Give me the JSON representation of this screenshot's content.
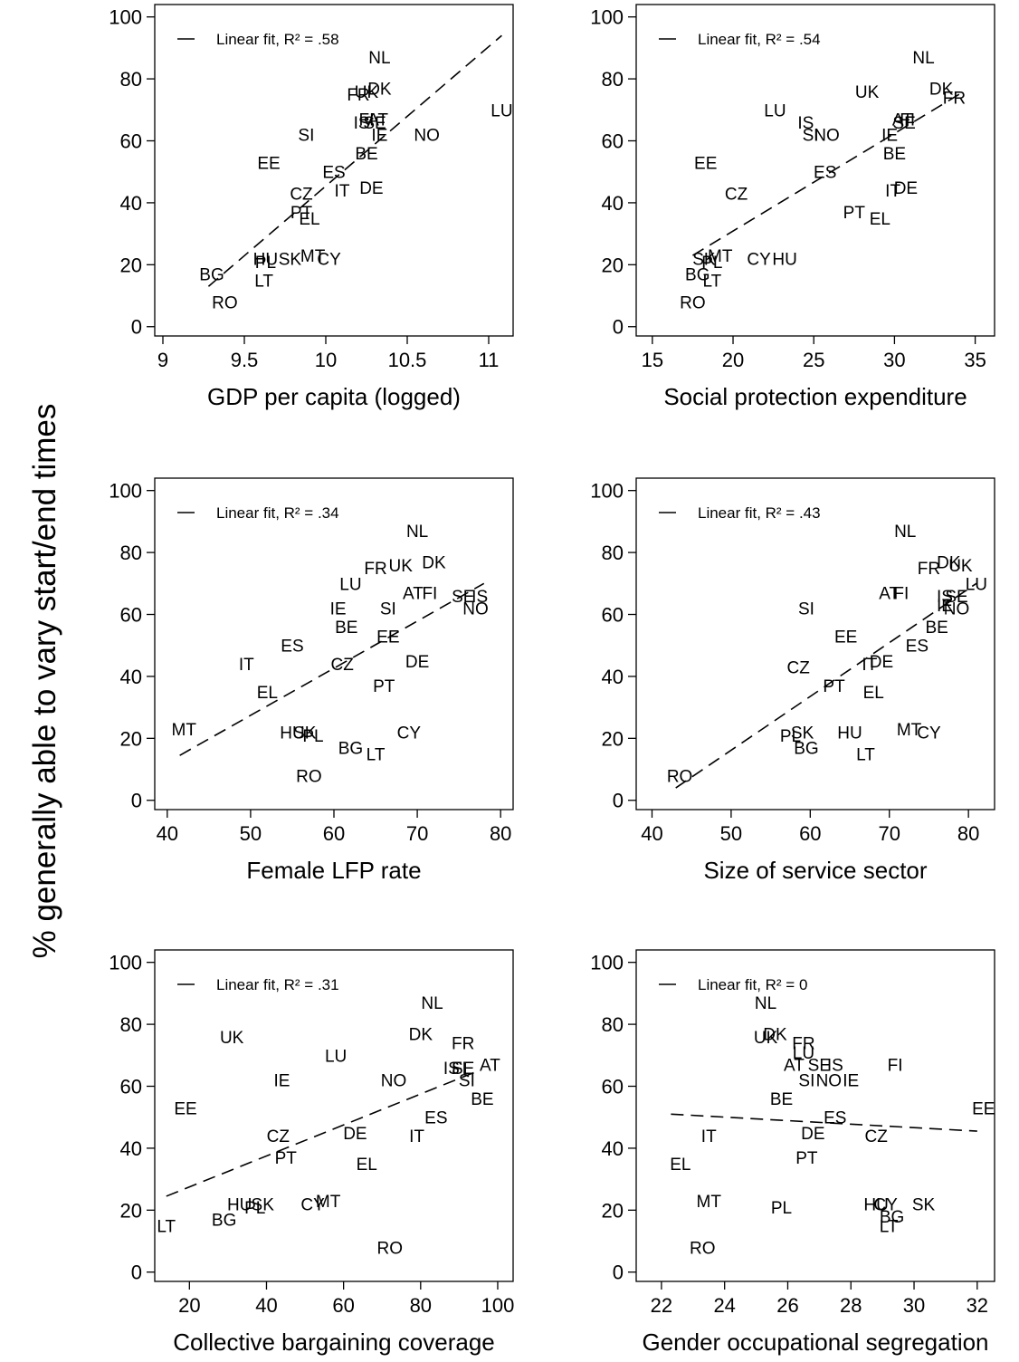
{
  "figure": {
    "shared_ylabel": "% generally able to vary start/end times"
  },
  "chart_data": [
    {
      "type": "scatter",
      "xlabel": "GDP per capita (logged)",
      "ylabel": "% generally able to vary start/end times",
      "xlim": [
        8.95,
        11.15
      ],
      "ylim": [
        -3,
        104
      ],
      "xticks": [
        9,
        9.5,
        10,
        10.5,
        11
      ],
      "yticks": [
        0,
        20,
        40,
        60,
        80,
        100
      ],
      "legend": "Linear fit, R² = .58",
      "legend_position": "top-left",
      "grid": false,
      "fit": {
        "x": [
          9.28,
          11.08
        ],
        "y": [
          13,
          94
        ]
      },
      "points": [
        {
          "label": "NL",
          "x": 10.33,
          "y": 87
        },
        {
          "label": "DK",
          "x": 10.33,
          "y": 77
        },
        {
          "label": "UK",
          "x": 10.25,
          "y": 76
        },
        {
          "label": "FR",
          "x": 10.2,
          "y": 75
        },
        {
          "label": "SE",
          "x": 10.3,
          "y": 66
        },
        {
          "label": "AT",
          "x": 10.32,
          "y": 67
        },
        {
          "label": "IS",
          "x": 10.22,
          "y": 66
        },
        {
          "label": "FI",
          "x": 10.25,
          "y": 67
        },
        {
          "label": "IE",
          "x": 10.33,
          "y": 62
        },
        {
          "label": "SI",
          "x": 9.88,
          "y": 62
        },
        {
          "label": "NO",
          "x": 10.62,
          "y": 62
        },
        {
          "label": "LU",
          "x": 11.08,
          "y": 70
        },
        {
          "label": "BE",
          "x": 10.25,
          "y": 56
        },
        {
          "label": "EE",
          "x": 9.65,
          "y": 53
        },
        {
          "label": "ES",
          "x": 10.05,
          "y": 50
        },
        {
          "label": "IT",
          "x": 10.1,
          "y": 44
        },
        {
          "label": "DE",
          "x": 10.28,
          "y": 45
        },
        {
          "label": "CZ",
          "x": 9.85,
          "y": 43
        },
        {
          "label": "PT",
          "x": 9.85,
          "y": 37
        },
        {
          "label": "EL",
          "x": 9.9,
          "y": 35
        },
        {
          "label": "HU",
          "x": 9.63,
          "y": 22
        },
        {
          "label": "SK",
          "x": 9.78,
          "y": 22
        },
        {
          "label": "MT",
          "x": 9.92,
          "y": 23
        },
        {
          "label": "CY",
          "x": 10.02,
          "y": 22
        },
        {
          "label": "PL",
          "x": 9.63,
          "y": 21
        },
        {
          "label": "BG",
          "x": 9.3,
          "y": 17
        },
        {
          "label": "LT",
          "x": 9.62,
          "y": 15
        },
        {
          "label": "RO",
          "x": 9.38,
          "y": 8
        }
      ]
    },
    {
      "type": "scatter",
      "xlabel": "Social protection expenditure",
      "ylabel": "% generally able to vary start/end times",
      "xlim": [
        14,
        36.2
      ],
      "ylim": [
        -3,
        104
      ],
      "xticks": [
        15,
        20,
        25,
        30,
        35
      ],
      "yticks": [
        0,
        20,
        40,
        60,
        80,
        100
      ],
      "legend": "Linear fit, R² = .54",
      "legend_position": "top-left",
      "grid": false,
      "fit": {
        "x": [
          17.5,
          34
        ],
        "y": [
          23,
          75
        ]
      },
      "points": [
        {
          "label": "NL",
          "x": 31.8,
          "y": 87
        },
        {
          "label": "DK",
          "x": 32.9,
          "y": 77
        },
        {
          "label": "FR",
          "x": 33.7,
          "y": 74
        },
        {
          "label": "UK",
          "x": 28.3,
          "y": 76
        },
        {
          "label": "LU",
          "x": 22.6,
          "y": 70
        },
        {
          "label": "IS",
          "x": 24.5,
          "y": 66
        },
        {
          "label": "SI",
          "x": 24.8,
          "y": 62
        },
        {
          "label": "NO",
          "x": 25.8,
          "y": 62
        },
        {
          "label": "AT",
          "x": 30.5,
          "y": 67
        },
        {
          "label": "FI",
          "x": 30.8,
          "y": 67
        },
        {
          "label": "SE",
          "x": 30.6,
          "y": 66
        },
        {
          "label": "IE",
          "x": 29.7,
          "y": 62
        },
        {
          "label": "BE",
          "x": 30,
          "y": 56
        },
        {
          "label": "EE",
          "x": 18.3,
          "y": 53
        },
        {
          "label": "ES",
          "x": 25.7,
          "y": 50
        },
        {
          "label": "CZ",
          "x": 20.2,
          "y": 43
        },
        {
          "label": "IT",
          "x": 29.9,
          "y": 44
        },
        {
          "label": "DE",
          "x": 30.7,
          "y": 45
        },
        {
          "label": "PT",
          "x": 27.5,
          "y": 37
        },
        {
          "label": "EL",
          "x": 29.1,
          "y": 35
        },
        {
          "label": "SK",
          "x": 18.2,
          "y": 22
        },
        {
          "label": "MT",
          "x": 19.2,
          "y": 23
        },
        {
          "label": "CY",
          "x": 21.6,
          "y": 22
        },
        {
          "label": "HU",
          "x": 23.2,
          "y": 22
        },
        {
          "label": "PL",
          "x": 18.7,
          "y": 21
        },
        {
          "label": "BG",
          "x": 17.8,
          "y": 17
        },
        {
          "label": "LT",
          "x": 18.7,
          "y": 15
        },
        {
          "label": "RO",
          "x": 17.5,
          "y": 8
        }
      ]
    },
    {
      "type": "scatter",
      "xlabel": "Female LFP rate",
      "ylabel": "% generally able to vary start/end times",
      "xlim": [
        38.5,
        81.5
      ],
      "ylim": [
        -3,
        104
      ],
      "xticks": [
        40,
        50,
        60,
        70,
        80
      ],
      "yticks": [
        0,
        20,
        40,
        60,
        80,
        100
      ],
      "legend": "Linear fit, R² = .34",
      "legend_position": "top-left",
      "grid": false,
      "fit": {
        "x": [
          41.5,
          78
        ],
        "y": [
          14.5,
          70
        ]
      },
      "points": [
        {
          "label": "NL",
          "x": 70,
          "y": 87
        },
        {
          "label": "DK",
          "x": 72,
          "y": 77
        },
        {
          "label": "FR",
          "x": 65,
          "y": 75
        },
        {
          "label": "UK",
          "x": 68,
          "y": 76
        },
        {
          "label": "LU",
          "x": 62,
          "y": 70
        },
        {
          "label": "AT",
          "x": 69.5,
          "y": 67
        },
        {
          "label": "FI",
          "x": 71.5,
          "y": 67
        },
        {
          "label": "SE",
          "x": 75.5,
          "y": 66
        },
        {
          "label": "IS",
          "x": 77.5,
          "y": 66
        },
        {
          "label": "NO",
          "x": 77,
          "y": 62
        },
        {
          "label": "IE",
          "x": 60.5,
          "y": 62
        },
        {
          "label": "SI",
          "x": 66.5,
          "y": 62
        },
        {
          "label": "BE",
          "x": 61.5,
          "y": 56
        },
        {
          "label": "EE",
          "x": 66.5,
          "y": 53
        },
        {
          "label": "ES",
          "x": 55,
          "y": 50
        },
        {
          "label": "CZ",
          "x": 61,
          "y": 44
        },
        {
          "label": "IT",
          "x": 49.5,
          "y": 44
        },
        {
          "label": "DE",
          "x": 70,
          "y": 45
        },
        {
          "label": "PT",
          "x": 66,
          "y": 37
        },
        {
          "label": "EL",
          "x": 52,
          "y": 35
        },
        {
          "label": "MT",
          "x": 42,
          "y": 23
        },
        {
          "label": "HU",
          "x": 55,
          "y": 22
        },
        {
          "label": "SK",
          "x": 56.5,
          "y": 22
        },
        {
          "label": "PL",
          "x": 57.5,
          "y": 21
        },
        {
          "label": "CY",
          "x": 69,
          "y": 22
        },
        {
          "label": "BG",
          "x": 62,
          "y": 17
        },
        {
          "label": "LT",
          "x": 65,
          "y": 15
        },
        {
          "label": "RO",
          "x": 57,
          "y": 8
        }
      ]
    },
    {
      "type": "scatter",
      "xlabel": "Size of service sector",
      "ylabel": "% generally able to vary start/end times",
      "xlim": [
        38,
        83.3
      ],
      "ylim": [
        -3,
        104
      ],
      "xticks": [
        40,
        50,
        60,
        70,
        80
      ],
      "yticks": [
        0,
        20,
        40,
        60,
        80,
        100
      ],
      "legend": "Linear fit, R² = .43",
      "legend_position": "top-left",
      "grid": false,
      "fit": {
        "x": [
          43,
          81
        ],
        "y": [
          4,
          70
        ]
      },
      "points": [
        {
          "label": "NL",
          "x": 72,
          "y": 87
        },
        {
          "label": "DK",
          "x": 77.5,
          "y": 77
        },
        {
          "label": "UK",
          "x": 79,
          "y": 76
        },
        {
          "label": "FR",
          "x": 75,
          "y": 75
        },
        {
          "label": "LU",
          "x": 81,
          "y": 70
        },
        {
          "label": "AT",
          "x": 70,
          "y": 67
        },
        {
          "label": "FI",
          "x": 71.5,
          "y": 67
        },
        {
          "label": "IS",
          "x": 77,
          "y": 66
        },
        {
          "label": "SE",
          "x": 78.5,
          "y": 66
        },
        {
          "label": "IE",
          "x": 77,
          "y": 63
        },
        {
          "label": "NO",
          "x": 78.5,
          "y": 62
        },
        {
          "label": "SI",
          "x": 59.5,
          "y": 62
        },
        {
          "label": "BE",
          "x": 76,
          "y": 56
        },
        {
          "label": "EE",
          "x": 64.5,
          "y": 53
        },
        {
          "label": "ES",
          "x": 73.5,
          "y": 50
        },
        {
          "label": "CZ",
          "x": 58.5,
          "y": 43
        },
        {
          "label": "IT",
          "x": 67.5,
          "y": 44
        },
        {
          "label": "DE",
          "x": 69,
          "y": 45
        },
        {
          "label": "PT",
          "x": 63,
          "y": 37
        },
        {
          "label": "EL",
          "x": 68,
          "y": 35
        },
        {
          "label": "PL",
          "x": 57.5,
          "y": 21
        },
        {
          "label": "SK",
          "x": 59,
          "y": 22
        },
        {
          "label": "HU",
          "x": 65,
          "y": 22
        },
        {
          "label": "MT",
          "x": 72.5,
          "y": 23
        },
        {
          "label": "CY",
          "x": 75,
          "y": 22
        },
        {
          "label": "BG",
          "x": 59.5,
          "y": 17
        },
        {
          "label": "LT",
          "x": 67,
          "y": 15
        },
        {
          "label": "RO",
          "x": 43.5,
          "y": 8
        }
      ]
    },
    {
      "type": "scatter",
      "xlabel": "Collective bargaining coverage",
      "ylabel": "% generally able to vary start/end times",
      "xlim": [
        11,
        104
      ],
      "ylim": [
        -3,
        104
      ],
      "xticks": [
        20,
        40,
        60,
        80,
        100
      ],
      "yticks": [
        0,
        20,
        40,
        60,
        80,
        100
      ],
      "legend": "Linear fit, R² = .31",
      "legend_position": "top-left",
      "grid": false,
      "fit": {
        "x": [
          14,
          95
        ],
        "y": [
          24.5,
          65
        ]
      },
      "points": [
        {
          "label": "NL",
          "x": 83,
          "y": 87
        },
        {
          "label": "DK",
          "x": 80,
          "y": 77
        },
        {
          "label": "UK",
          "x": 31,
          "y": 76
        },
        {
          "label": "FR",
          "x": 91,
          "y": 74
        },
        {
          "label": "LU",
          "x": 58,
          "y": 70
        },
        {
          "label": "AT",
          "x": 98,
          "y": 67
        },
        {
          "label": "IS",
          "x": 88,
          "y": 66
        },
        {
          "label": "SE",
          "x": 91,
          "y": 66
        },
        {
          "label": "FI",
          "x": 90,
          "y": 66
        },
        {
          "label": "SI",
          "x": 92,
          "y": 62
        },
        {
          "label": "IE",
          "x": 44,
          "y": 62
        },
        {
          "label": "NO",
          "x": 73,
          "y": 62
        },
        {
          "label": "BE",
          "x": 96,
          "y": 56
        },
        {
          "label": "EE",
          "x": 19,
          "y": 53
        },
        {
          "label": "ES",
          "x": 84,
          "y": 50
        },
        {
          "label": "CZ",
          "x": 43,
          "y": 44
        },
        {
          "label": "DE",
          "x": 63,
          "y": 45
        },
        {
          "label": "IT",
          "x": 79,
          "y": 44
        },
        {
          "label": "PT",
          "x": 45,
          "y": 37
        },
        {
          "label": "EL",
          "x": 66,
          "y": 35
        },
        {
          "label": "HU",
          "x": 33,
          "y": 22
        },
        {
          "label": "SK",
          "x": 39,
          "y": 22
        },
        {
          "label": "PL",
          "x": 37,
          "y": 21
        },
        {
          "label": "MT",
          "x": 56,
          "y": 23
        },
        {
          "label": "CY",
          "x": 52,
          "y": 22
        },
        {
          "label": "BG",
          "x": 29,
          "y": 17
        },
        {
          "label": "LT",
          "x": 14,
          "y": 15
        },
        {
          "label": "RO",
          "x": 72,
          "y": 8
        }
      ]
    },
    {
      "type": "scatter",
      "xlabel": "Gender occupational segregation",
      "ylabel": "% generally able to vary start/end times",
      "xlim": [
        21.2,
        32.55
      ],
      "ylim": [
        -3,
        104
      ],
      "xticks": [
        22,
        24,
        26,
        28,
        30,
        32
      ],
      "yticks": [
        0,
        20,
        40,
        60,
        80,
        100
      ],
      "legend": "Linear fit, R² = 0",
      "legend_position": "top-left",
      "grid": false,
      "fit": {
        "x": [
          22.3,
          32
        ],
        "y": [
          51,
          45.5
        ]
      },
      "points": [
        {
          "label": "NL",
          "x": 25.3,
          "y": 87
        },
        {
          "label": "DK",
          "x": 25.6,
          "y": 77
        },
        {
          "label": "UK",
          "x": 25.3,
          "y": 76
        },
        {
          "label": "FR",
          "x": 26.5,
          "y": 74
        },
        {
          "label": "LU",
          "x": 26.5,
          "y": 71
        },
        {
          "label": "AT",
          "x": 26.2,
          "y": 67
        },
        {
          "label": "SE",
          "x": 27,
          "y": 67
        },
        {
          "label": "IS",
          "x": 27.5,
          "y": 67
        },
        {
          "label": "SI",
          "x": 26.6,
          "y": 62
        },
        {
          "label": "NO",
          "x": 27.3,
          "y": 62
        },
        {
          "label": "IE",
          "x": 28,
          "y": 62
        },
        {
          "label": "FI",
          "x": 29.4,
          "y": 67
        },
        {
          "label": "BE",
          "x": 25.8,
          "y": 56
        },
        {
          "label": "ES",
          "x": 27.5,
          "y": 50
        },
        {
          "label": "EE",
          "x": 32.2,
          "y": 53
        },
        {
          "label": "IT",
          "x": 23.5,
          "y": 44
        },
        {
          "label": "DE",
          "x": 26.8,
          "y": 45
        },
        {
          "label": "CZ",
          "x": 28.8,
          "y": 44
        },
        {
          "label": "PT",
          "x": 26.6,
          "y": 37
        },
        {
          "label": "EL",
          "x": 22.6,
          "y": 35
        },
        {
          "label": "MT",
          "x": 23.5,
          "y": 23
        },
        {
          "label": "PL",
          "x": 25.8,
          "y": 21
        },
        {
          "label": "HU",
          "x": 28.8,
          "y": 22
        },
        {
          "label": "CY",
          "x": 29.1,
          "y": 22
        },
        {
          "label": "SK",
          "x": 30.3,
          "y": 22
        },
        {
          "label": "BG",
          "x": 29.3,
          "y": 18
        },
        {
          "label": "LT",
          "x": 29.2,
          "y": 15
        },
        {
          "label": "RO",
          "x": 23.3,
          "y": 8
        }
      ]
    }
  ]
}
